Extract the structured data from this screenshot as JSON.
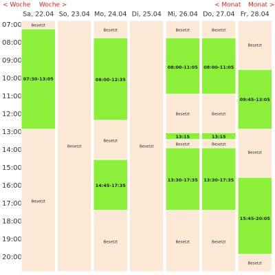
{
  "nav": {
    "prev_week": "< Woche",
    "next_week": "Woche >",
    "prev_month": "< Monat",
    "next_month": "Monat >"
  },
  "times": [
    "07:00",
    "08:00",
    "09:00",
    "10:00",
    "11:00",
    "12:00",
    "13:00",
    "14:00",
    "15:00",
    "16:00",
    "17:00",
    "18:00",
    "19:00",
    "20:00"
  ],
  "days": [
    {
      "label": "Sa, 22.04",
      "slots": [
        {
          "label": "Besetzt",
          "color": "#fbe9d6"
        },
        {
          "label": "07:30-13:05",
          "color": "#8cf03a"
        },
        {
          "label": "Besetzt",
          "color": "#fbe9d6"
        }
      ]
    },
    {
      "label": "So, 23.04",
      "slots": [
        {
          "label": "Besetzt",
          "color": "#fbe9d6"
        }
      ]
    },
    {
      "label": "Mo, 24.04",
      "slots": [
        {
          "label": "Besetzt",
          "color": "#fbe9d6"
        },
        {
          "label": "08:00-12:35",
          "color": "#8cf03a"
        },
        {
          "label": "Besetzt",
          "color": "#fbe9d6"
        },
        {
          "label": "14:45-17:35",
          "color": "#8cf03a"
        },
        {
          "label": "Besetzt",
          "color": "#fbe9d6"
        }
      ]
    },
    {
      "label": "Di, 25.04",
      "slots": [
        {
          "label": "Besetzt",
          "color": "#fbe9d6"
        }
      ]
    },
    {
      "label": "Mi, 26.04",
      "slots": [
        {
          "label": "Besetzt",
          "color": "#fbe9d6"
        },
        {
          "label": "08:00-11:05",
          "color": "#8cf03a"
        },
        {
          "label": "Besetzt",
          "color": "#fbe9d6"
        },
        {
          "label": "13:15",
          "color": "#8cf03a"
        },
        {
          "label": "Besetzt",
          "color": "#fbe9d6"
        },
        {
          "label": "13:30-17:35",
          "color": "#8cf03a"
        },
        {
          "label": "Besetzt",
          "color": "#fbe9d6"
        }
      ]
    },
    {
      "label": "Do, 27.04",
      "slots": [
        {
          "label": "Besetzt",
          "color": "#fbe9d6"
        },
        {
          "label": "08:00-11:05",
          "color": "#8cf03a"
        },
        {
          "label": "Besetzt",
          "color": "#fbe9d6"
        },
        {
          "label": "13:15",
          "color": "#8cf03a"
        },
        {
          "label": "Besetzt",
          "color": "#fbe9d6"
        },
        {
          "label": "13:30-17:35",
          "color": "#8cf03a"
        },
        {
          "label": "Besetzt",
          "color": "#fbe9d6"
        }
      ]
    },
    {
      "label": "Fr, 28.04",
      "slots": [
        {
          "label": "Besetzt",
          "color": "#fbe9d6"
        },
        {
          "label": "09:45-13:05",
          "color": "#8cf03a"
        },
        {
          "label": "Besetzt",
          "color": "#fbe9d6"
        },
        {
          "label": "15:45-20:05",
          "color": "#8cf03a"
        },
        {
          "label": "Besetzt",
          "color": "#fbe9d6"
        }
      ]
    }
  ]
}
